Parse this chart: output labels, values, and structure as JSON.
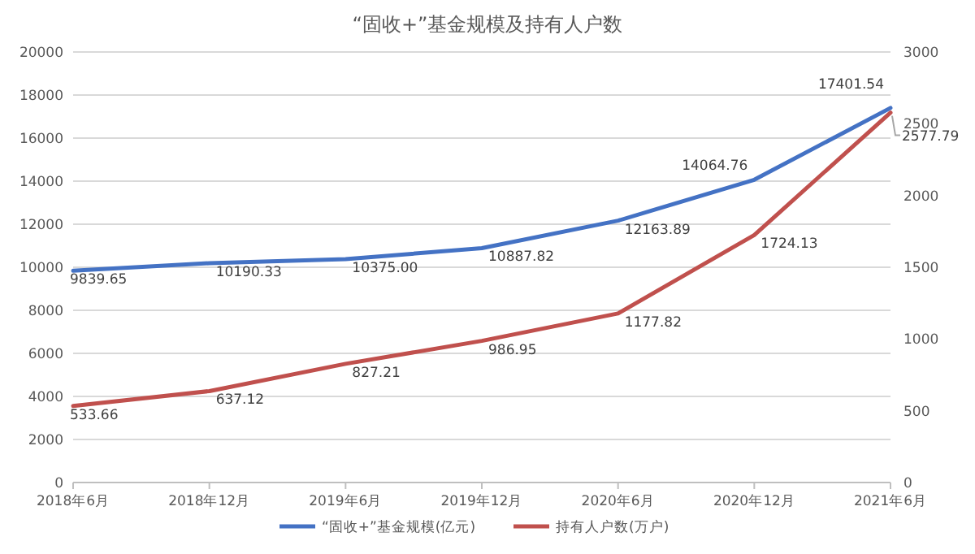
{
  "chart_data": {
    "type": "line",
    "title": "“固收+”基金规模及持有人户数",
    "categories": [
      "2018年6月",
      "2018年12月",
      "2019年6月",
      "2019年12月",
      "2020年6月",
      "2020年12月",
      "2021年6月"
    ],
    "series": [
      {
        "name": "“固收+”基金规模(亿元)",
        "color": "#4472c4",
        "values": [
          9839.65,
          10190.33,
          10375.0,
          10887.82,
          12163.89,
          14064.76,
          17401.54
        ],
        "value_labels": [
          "9839.65",
          "10190.33",
          "10375.00",
          "10887.82",
          "12163.89",
          "14064.76",
          "17401.54"
        ]
      },
      {
        "name": "持有人户数(万户)",
        "color": "#c0504d",
        "axis": "y2",
        "values": [
          533.66,
          637.12,
          827.21,
          986.95,
          1177.82,
          1724.13,
          2577.79
        ],
        "value_labels": [
          "533.66",
          "637.12",
          "827.21",
          "986.95",
          "1177.82",
          "1724.13",
          "2577.79"
        ]
      }
    ],
    "ylim": [
      0,
      20000
    ],
    "yticks": [
      0,
      2000,
      4000,
      6000,
      8000,
      10000,
      12000,
      14000,
      16000,
      18000,
      20000
    ],
    "y2lim": [
      0,
      3000
    ],
    "y2ticks": [
      0,
      500,
      1000,
      1500,
      2000,
      2500,
      3000
    ],
    "grid": "y",
    "legend": "bottom",
    "marker": "none",
    "line_style": "solid"
  }
}
